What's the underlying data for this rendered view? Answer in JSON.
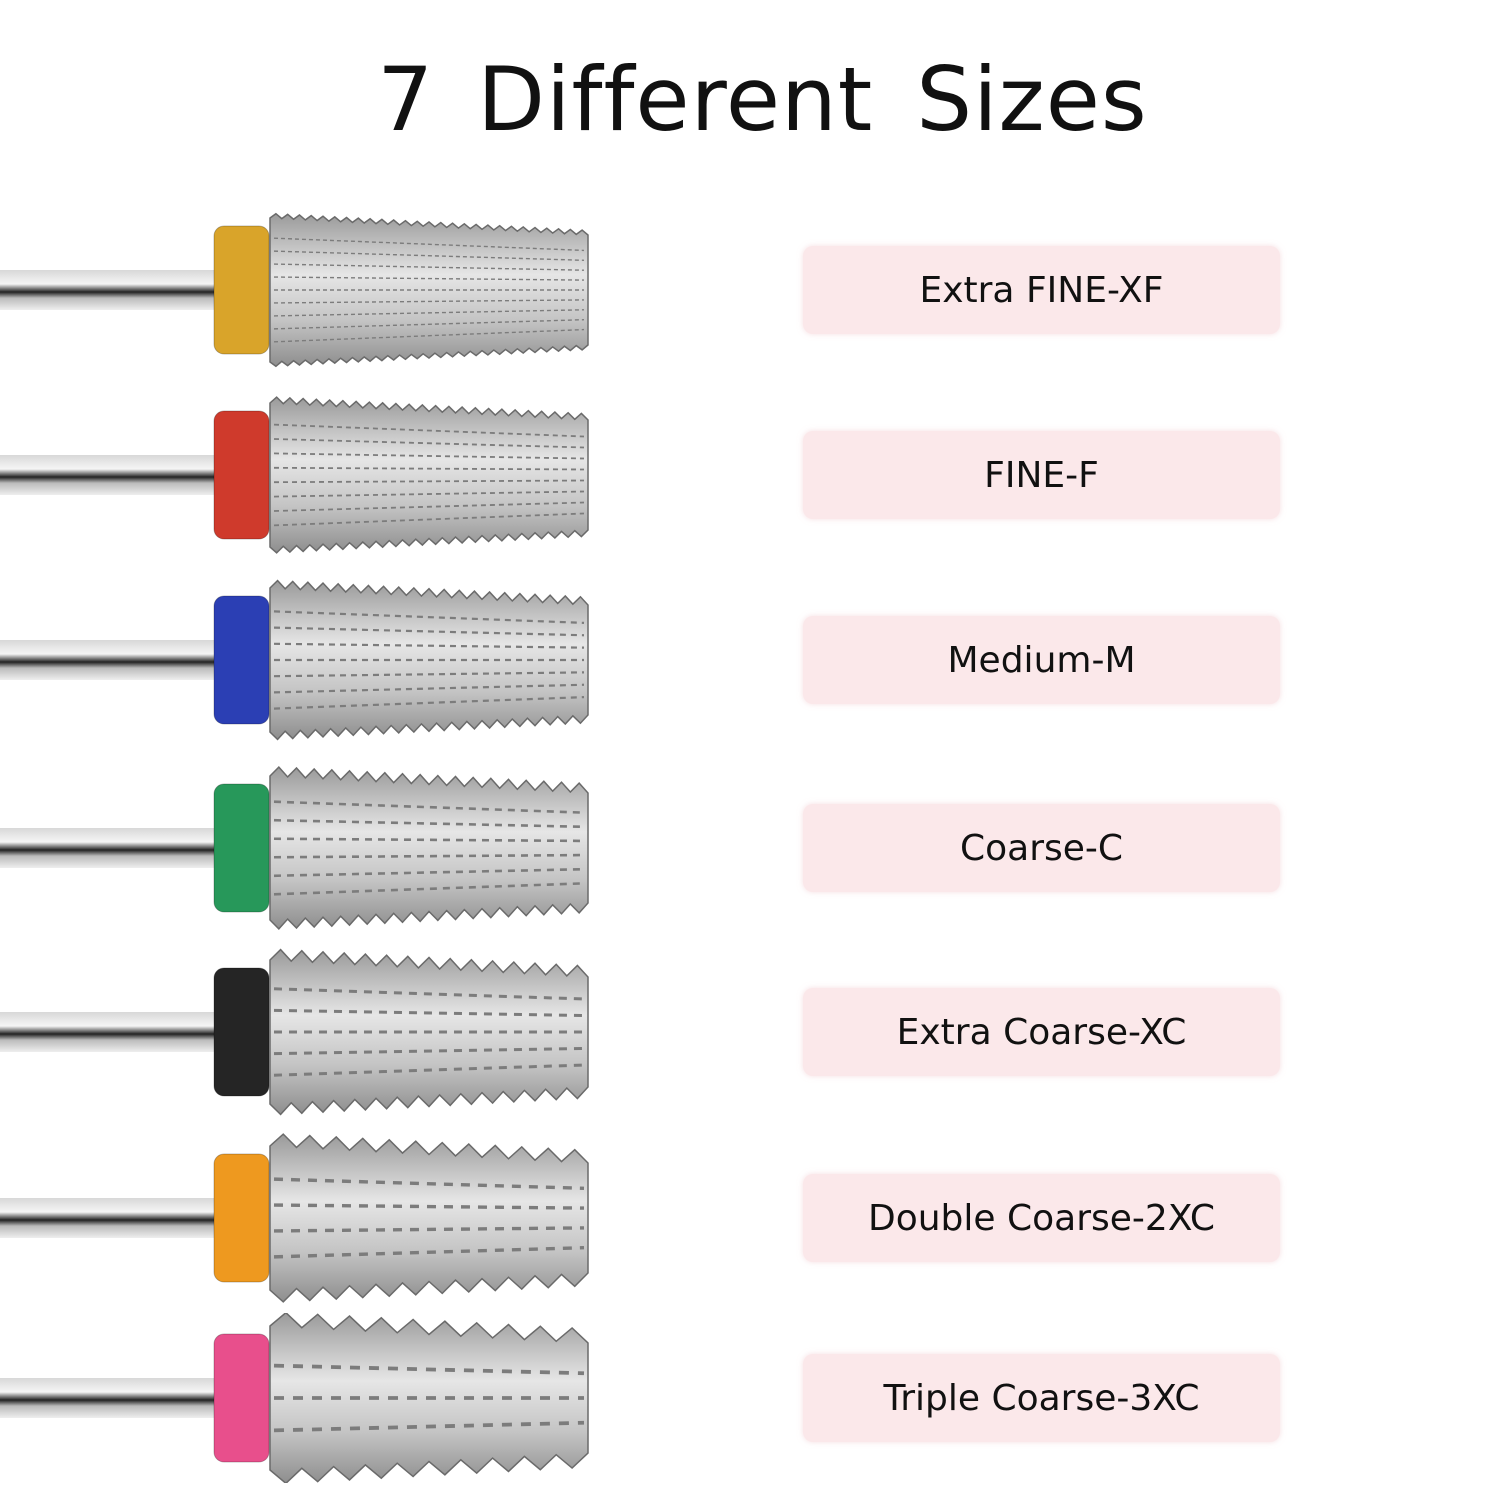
{
  "title": "7 Different Sizes",
  "items": [
    {
      "label": "Extra FINE-XF",
      "collar_color": "#d9a42a",
      "grit_level": 1
    },
    {
      "label": "FINE-F",
      "collar_color": "#cf3a2c",
      "grit_level": 2
    },
    {
      "label": "Medium-M",
      "collar_color": "#2b3fb4",
      "grit_level": 3
    },
    {
      "label": "Coarse-C",
      "collar_color": "#27985a",
      "grit_level": 4
    },
    {
      "label": "Extra Coarse-XC",
      "collar_color": "#252525",
      "grit_level": 5
    },
    {
      "label": "Double Coarse-2XC",
      "collar_color": "#ee991f",
      "grit_level": 6
    },
    {
      "label": "Triple Coarse-3XC",
      "collar_color": "#e84f8c",
      "grit_level": 7
    }
  ]
}
